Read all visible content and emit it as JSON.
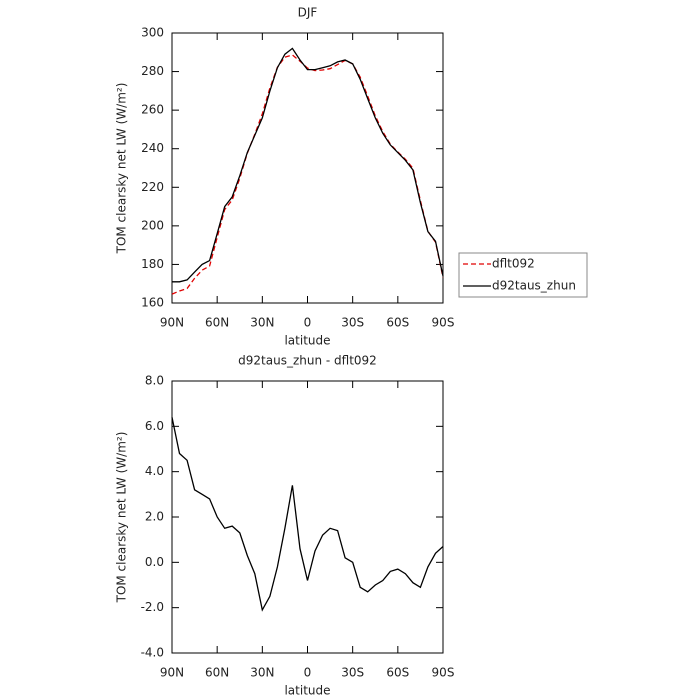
{
  "chart_data": [
    {
      "type": "line",
      "title": "DJF",
      "xlabel": "latitude",
      "ylabel": "TOM clearsky net LW (W/m²)",
      "x": [
        90,
        85,
        80,
        75,
        70,
        65,
        60,
        55,
        50,
        45,
        40,
        35,
        30,
        25,
        20,
        15,
        10,
        5,
        0,
        -5,
        -10,
        -15,
        -20,
        -25,
        -30,
        -35,
        -40,
        -45,
        -50,
        -55,
        -60,
        -65,
        -70,
        -75,
        -80,
        -85,
        -90
      ],
      "series": [
        {
          "name": "dflt092",
          "color": "#e00000",
          "style": "dashed",
          "values": [
            164.6,
            166.2,
            167.5,
            172.8,
            177,
            179.2,
            194,
            208.5,
            213.4,
            224.7,
            237.7,
            247.5,
            258.1,
            271.5,
            282.2,
            287.5,
            288.6,
            285.4,
            281.8,
            280.5,
            280.8,
            281.5,
            283.6,
            285.8,
            284,
            277.1,
            267.3,
            257,
            248.8,
            242.4,
            238.3,
            234.5,
            229.9,
            213.1,
            197.2,
            191.6,
            173.3
          ]
        },
        {
          "name": "d92taus_zhun",
          "color": "#000000",
          "style": "solid",
          "values": [
            171,
            171,
            172,
            176,
            180,
            182,
            196,
            210,
            215,
            226,
            238,
            247,
            256,
            270,
            282,
            289,
            292,
            286,
            281,
            281,
            282,
            283,
            285,
            286,
            284,
            276,
            266,
            256,
            248,
            242,
            238,
            234,
            229,
            212,
            197,
            192,
            174
          ]
        }
      ],
      "xlim": [
        90,
        -90
      ],
      "xticks": [
        {
          "value": 90,
          "label": "90N"
        },
        {
          "value": 60,
          "label": "60N"
        },
        {
          "value": 30,
          "label": "30N"
        },
        0,
        {
          "value": -30,
          "label": "30S"
        },
        {
          "value": -60,
          "label": "60S"
        },
        {
          "value": -90,
          "label": "90S"
        }
      ],
      "ylim": [
        160,
        300
      ],
      "yticks": [
        160,
        180,
        200,
        220,
        240,
        260,
        280,
        300
      ],
      "legend": "outside right"
    },
    {
      "type": "line",
      "title": "d92taus_zhun - dflt092",
      "xlabel": "latitude",
      "ylabel": "TOM clearsky net LW (W/m²)",
      "x": [
        90,
        85,
        80,
        75,
        70,
        65,
        60,
        55,
        50,
        45,
        40,
        35,
        30,
        25,
        20,
        15,
        10,
        5,
        0,
        -5,
        -10,
        -15,
        -20,
        -25,
        -30,
        -35,
        -40,
        -45,
        -50,
        -55,
        -60,
        -65,
        -70,
        -75,
        -80,
        -85,
        -90
      ],
      "series": [
        {
          "color": "#000000",
          "style": "solid",
          "values": [
            6.4,
            4.8,
            4.5,
            3.2,
            3.0,
            2.8,
            2.0,
            1.5,
            1.6,
            1.3,
            0.3,
            -0.5,
            -2.1,
            -1.5,
            -0.2,
            1.5,
            3.4,
            0.6,
            -0.8,
            0.5,
            1.2,
            1.5,
            1.4,
            0.2,
            0.0,
            -1.1,
            -1.3,
            -1.0,
            -0.8,
            -0.4,
            -0.3,
            -0.5,
            -0.9,
            -1.1,
            -0.2,
            0.4,
            0.7
          ]
        }
      ],
      "xlim": [
        90,
        -90
      ],
      "xticks": [
        {
          "value": 90,
          "label": "90N"
        },
        {
          "value": 60,
          "label": "60N"
        },
        {
          "value": 30,
          "label": "30N"
        },
        0,
        {
          "value": -30,
          "label": "30S"
        },
        {
          "value": -60,
          "label": "60S"
        },
        {
          "value": -90,
          "label": "90S"
        }
      ],
      "ylim": [
        -4,
        8
      ],
      "yticks": [
        {
          "value": -4,
          "label": "-4.0"
        },
        {
          "value": -2,
          "label": "-2.0"
        },
        {
          "value": 0,
          "label": "0.0"
        },
        {
          "value": 2,
          "label": "2.0"
        },
        {
          "value": 4,
          "label": "4.0"
        },
        {
          "value": 6,
          "label": "6.0"
        },
        {
          "value": 8,
          "label": "8.0"
        }
      ]
    }
  ]
}
